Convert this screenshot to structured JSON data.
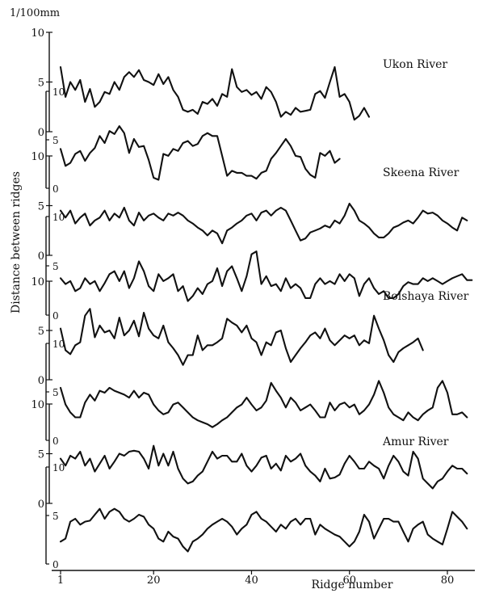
{
  "chart_data": {
    "type": "line",
    "unit_label": "1/100mm",
    "ylabel": "Distance between ridges",
    "xlabel": "Ridge number",
    "x_ticks": [
      "1",
      "20",
      "40",
      "60",
      "80"
    ],
    "panels": [
      {
        "river": "Ukon River",
        "axis_labels": [
          "10",
          "5",
          "0"
        ],
        "series": [
          {
            "x_start": 1,
            "values": [
              6.5,
              3.5,
              5,
              4.2,
              5.2,
              3,
              4.3,
              2.5,
              3,
              4,
              3.8,
              5,
              4.2,
              5.5,
              6,
              5.5,
              6.2,
              5.2,
              5,
              4.7,
              5.8,
              4.8,
              5.5,
              4.2,
              3.5,
              2.2,
              2,
              2.2,
              1.8,
              3,
              2.8,
              3.3,
              2.6,
              3.8,
              3.5,
              6.3,
              4.5,
              4,
              4.2,
              3.7,
              4,
              3.3,
              4.5,
              4,
              3,
              1.5,
              2,
              1.7,
              2.4,
              2,
              2.1,
              2.2,
              3.8,
              4.1,
              3.4,
              5,
              6.5,
              3.5,
              3.8,
              3,
              1.2,
              1.6,
              2.4,
              1.5
            ]
          },
          {
            "x_start": 1,
            "values": [
              4.2,
              2.5,
              2.8,
              3.7,
              4,
              3,
              3.8,
              4.3,
              5.5,
              4.8,
              6,
              5.7,
              6.5,
              5.8,
              3.8,
              5.2,
              4.4,
              4.5,
              3.1,
              1.3,
              1.1,
              3.7,
              3.5,
              4.2,
              4,
              4.8,
              5,
              4.5,
              4.7,
              5.5,
              5.8,
              5.5,
              5.5,
              3.5,
              1.5,
              2,
              1.8,
              1.8,
              1.5,
              1.5,
              1.2,
              1.8,
              2,
              3.2,
              3.8,
              4.5,
              5.2,
              4.5,
              3.5,
              3.4,
              2.2,
              1.6,
              1.3,
              3.8,
              3.5,
              4,
              2.8,
              3.2
            ]
          }
        ]
      },
      {
        "river": "Skeena River",
        "axis_labels": [
          "10",
          "5",
          "0"
        ],
        "series": [
          {
            "x_start": 1,
            "values": [
              4.5,
              3.8,
              4.5,
              3.2,
              3.8,
              4.2,
              3,
              3.5,
              3.8,
              4.5,
              3.5,
              4.2,
              3.8,
              4.8,
              3.5,
              3,
              4.3,
              3.5,
              4,
              4.2,
              3.8,
              3.5,
              4.2,
              4,
              4.3,
              4,
              3.5,
              3.2,
              2.8,
              2.5,
              2,
              2.5,
              2.2,
              1.2,
              2.5,
              2.8,
              3.2,
              3.5,
              4,
              4.2,
              3.5,
              4.3,
              4.5,
              4,
              4.5,
              4.8,
              4.5,
              3.5,
              2.5,
              1.5,
              1.7,
              2.3,
              2.5,
              2.7,
              3,
              2.8,
              3.5,
              3.2,
              4,
              5.2,
              4.5,
              3.5,
              3.2,
              2.8,
              2.2,
              1.8,
              1.8,
              2.2,
              2.8,
              3,
              3.3,
              3.5,
              3.2,
              3.8,
              4.5,
              4.2,
              4.3,
              4,
              3.5,
              3.2,
              2.8,
              2.5,
              3.8,
              3.5
            ]
          },
          {
            "x_start": 1,
            "values": [
              3.8,
              3.2,
              3.5,
              2.5,
              2.8,
              3.8,
              3.2,
              3.5,
              2.5,
              3.3,
              4.2,
              4.5,
              3.5,
              4.5,
              2.8,
              3.8,
              5.5,
              4.5,
              3,
              2.5,
              4.2,
              3.5,
              3.8,
              4.2,
              2.5,
              3,
              1.5,
              2,
              2.8,
              2.2,
              3.2,
              3.5,
              4.8,
              3,
              4.5,
              5,
              3.8,
              2.5,
              4,
              6.2,
              6.5,
              3.2,
              4,
              3,
              3.2,
              2.5,
              3.8,
              2.8,
              3.2,
              2.8,
              1.8,
              1.8,
              3.2,
              3.8,
              3.2,
              3.5,
              3.2,
              4.2,
              3.5,
              4.2,
              3.8,
              2,
              3.2,
              3.8,
              2.8,
              2.2,
              2.5,
              1.8,
              1.8,
              2.2,
              3,
              3.4,
              3.2,
              3.2,
              3.8,
              3.5,
              3.8,
              3.5,
              3.2,
              3.5,
              3.8,
              4,
              4.2,
              3.6,
              3.6
            ]
          }
        ]
      },
      {
        "river": "Bolshaya River",
        "axis_labels": [
          "10",
          "5",
          "0"
        ],
        "series": [
          {
            "x_start": 1,
            "values": [
              5.2,
              3,
              2.6,
              3.5,
              3.8,
              6.5,
              7.2,
              4.3,
              5.5,
              4.8,
              5,
              4.2,
              6.3,
              4.5,
              5,
              6,
              4.4,
              6.8,
              5.2,
              4.5,
              4.2,
              5.5,
              3.8,
              3.2,
              2.5,
              1.5,
              2.5,
              2.5,
              4.5,
              3,
              3.5,
              3.5,
              3.8,
              4.2,
              6.2,
              5.8,
              5.5,
              4.8,
              5.5,
              4.2,
              3.8,
              2.5,
              3.8,
              3.5,
              4.8,
              5,
              3.2,
              1.8,
              2.5,
              3.2,
              3.8,
              4.5,
              4.8,
              4.2,
              5.2,
              4,
              3.5,
              4,
              4.5,
              4.2,
              4.5,
              3.5,
              4,
              3.7,
              6.5,
              5.2,
              4,
              2.5,
              1.8,
              2.8,
              3.2,
              3.5,
              3.8,
              4.2,
              3
            ]
          },
          {
            "x_start": 1,
            "values": [
              5.5,
              3.8,
              3,
              2.5,
              2.5,
              4,
              4.8,
              4.2,
              5.2,
              5,
              5.5,
              5.2,
              5,
              4.8,
              4.5,
              5.2,
              4.5,
              5,
              4.8,
              3.8,
              3.2,
              2.8,
              3,
              3.8,
              4,
              3.5,
              3,
              2.5,
              2.2,
              2,
              1.8,
              1.5,
              1.8,
              2.2,
              2.5,
              3,
              3.5,
              3.8,
              4.5,
              3.8,
              3.2,
              3.5,
              4.2,
              6,
              5.2,
              4.5,
              3.5,
              4.5,
              4,
              3.2,
              3.5,
              3.8,
              3.2,
              2.5,
              2.5,
              4,
              3.2,
              3.8,
              4,
              3.5,
              3.8,
              2.8,
              3.2,
              3.8,
              4.8,
              6.2,
              5,
              3.5,
              2.8,
              2.5,
              2.2,
              3,
              2.5,
              2.2,
              2.8,
              3.2,
              3.5,
              5.5,
              6.2,
              5,
              2.8,
              2.8,
              3,
              2.5
            ]
          }
        ]
      },
      {
        "river": "Amur River",
        "axis_labels": [
          "10",
          "5",
          "0"
        ],
        "series": [
          {
            "x_start": 1,
            "values": [
              4.5,
              3.8,
              4.8,
              4.5,
              5.2,
              3.8,
              4.5,
              3.2,
              4,
              4.8,
              3.5,
              4.2,
              5,
              4.8,
              5.2,
              5.3,
              5.2,
              4.5,
              3.5,
              5.8,
              3.8,
              5,
              3.8,
              5.2,
              3.5,
              2.5,
              2,
              2.2,
              2.8,
              3.2,
              4.2,
              5.2,
              4.5,
              4.8,
              4.8,
              4.2,
              4.2,
              5,
              3.8,
              3.2,
              3.8,
              4.6,
              4.8,
              3.5,
              4,
              3.3,
              4.8,
              4.2,
              4.5,
              5,
              3.8,
              3.2,
              2.8,
              2.2,
              3.5,
              2.5,
              2.6,
              2.9,
              4,
              4.8,
              4.2,
              3.5,
              3.5,
              4.2,
              3.8,
              3.5,
              2.5,
              3.8,
              4.8,
              4.2,
              3.2,
              2.8,
              5.2,
              4.5,
              2.5,
              2,
              1.5,
              2.2,
              2.5,
              3.2,
              3.8,
              3.5,
              3.5,
              3
            ]
          },
          {
            "x_start": 1,
            "values": [
              2.5,
              2.8,
              4.5,
              4.8,
              4.2,
              4.5,
              4.6,
              5.2,
              5.8,
              4.8,
              5.5,
              5.8,
              5.5,
              4.8,
              4.5,
              4.8,
              5.2,
              5,
              4.2,
              3.8,
              2.8,
              2.5,
              3.5,
              3,
              2.8,
              2,
              1.5,
              2.5,
              2.8,
              3.2,
              3.8,
              4.2,
              4.5,
              4.8,
              4.5,
              4,
              3.2,
              3.8,
              4.2,
              5.2,
              5.5,
              4.8,
              4.5,
              4,
              3.5,
              4.2,
              3.8,
              4.5,
              4.8,
              4.2,
              4.8,
              4.8,
              3.2,
              4.2,
              3.8,
              3.5,
              3.2,
              3,
              2.5,
              2,
              2.5,
              3.5,
              5.2,
              4.5,
              2.8,
              3.8,
              4.8,
              4.8,
              4.5,
              4.5,
              3.5,
              2.5,
              3.8,
              4.2,
              4.5,
              3.2,
              2.8,
              2.5,
              2.2,
              3.8,
              5.5,
              5,
              4.5,
              3.8
            ]
          }
        ]
      }
    ]
  }
}
